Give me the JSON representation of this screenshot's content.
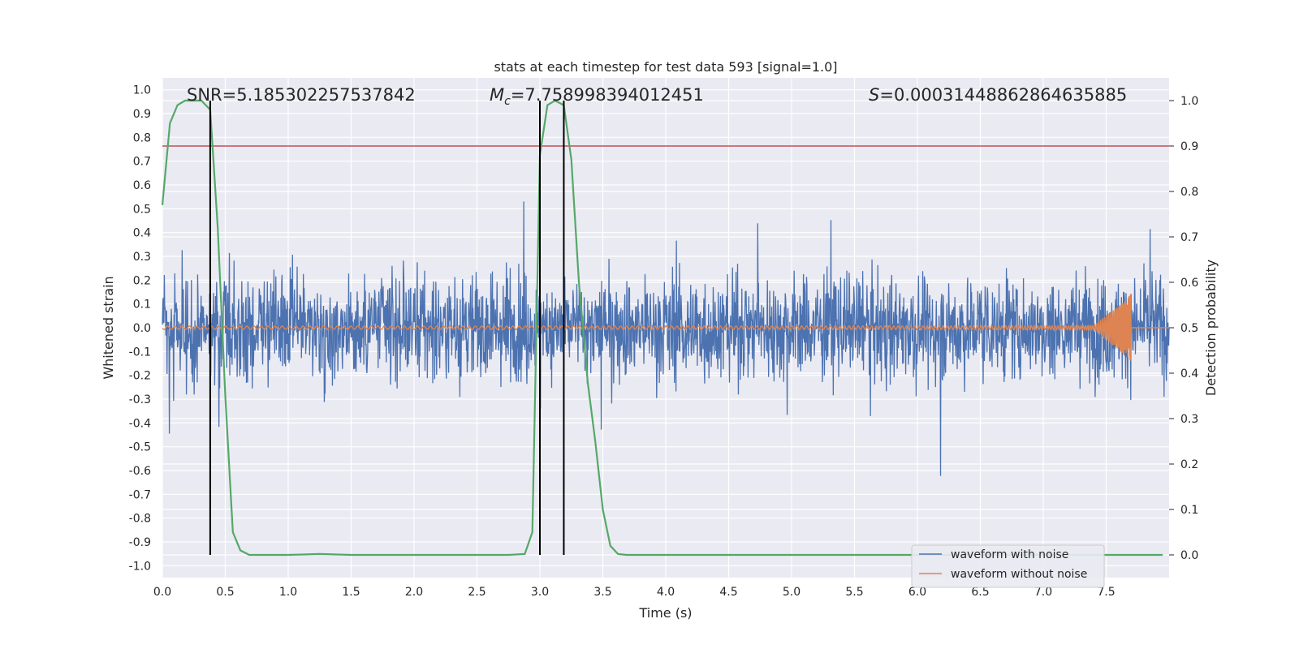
{
  "chart_data": {
    "type": "line",
    "title": "stats at each timestep for test data 593 [signal=1.0]",
    "xlabel": "Time (s)",
    "ylabel": "Whitened strain",
    "ylabel_right": "Detection probability",
    "xlim": [
      0.0,
      8.0
    ],
    "ylim": [
      -1.05,
      1.05
    ],
    "ylim_right": [
      -0.05,
      1.05
    ],
    "x_ticks": [
      "0.0",
      "0.5",
      "1.0",
      "1.5",
      "2.0",
      "2.5",
      "3.0",
      "3.5",
      "4.0",
      "4.5",
      "5.0",
      "5.5",
      "6.0",
      "6.5",
      "7.0",
      "7.5"
    ],
    "y_ticks": [
      "1.0",
      "0.9",
      "0.8",
      "0.7",
      "0.6",
      "0.5",
      "0.4",
      "0.3",
      "0.2",
      "0.1",
      "0.0",
      "-0.1",
      "-0.2",
      "-0.3",
      "-0.4",
      "-0.5",
      "-0.6",
      "-0.7",
      "-0.8",
      "-0.9",
      "-1.0"
    ],
    "y_ticks_right": [
      "1.0",
      "0.9",
      "0.8",
      "0.7",
      "0.6",
      "0.5",
      "0.4",
      "0.3",
      "0.2",
      "0.1",
      "0.0"
    ],
    "annotations": {
      "snr_label": "SNR=5.185302257537842",
      "mc_symbol": "M",
      "mc_sub": "c",
      "mc_value": "=7.758998394012451",
      "s_symbol": "S",
      "s_value": "=0.00031448862864635885"
    },
    "threshold_right": 0.9,
    "vertical_lines_s": [
      0.38,
      3.0,
      3.19
    ],
    "series": [
      {
        "name": "waveform with noise",
        "color": "#4c72b0",
        "noise_band": [
          -0.33,
          0.33
        ]
      },
      {
        "name": "waveform without noise",
        "color": "#dd8452",
        "chirp_end_s": 7.7,
        "peak_amplitude": 0.16
      },
      {
        "name": "detection probability",
        "color": "#55a868",
        "x": [
          0.0,
          0.06,
          0.12,
          0.18,
          0.25,
          0.31,
          0.38,
          0.44,
          0.5,
          0.56,
          0.62,
          0.69,
          0.75,
          1.0,
          1.25,
          1.5,
          2.0,
          2.5,
          2.75,
          2.88,
          2.94,
          3.0,
          3.06,
          3.12,
          3.19,
          3.25,
          3.31,
          3.38,
          3.44,
          3.5,
          3.56,
          3.62,
          3.69,
          3.75,
          4.0,
          5.0,
          6.0,
          7.0,
          7.5,
          7.95
        ],
        "y": [
          0.77,
          0.95,
          0.99,
          1.0,
          1.0,
          1.0,
          0.98,
          0.72,
          0.35,
          0.05,
          0.01,
          0.0,
          0.0,
          0.0,
          0.002,
          0.0,
          0.0,
          0.0,
          0.0,
          0.002,
          0.05,
          0.88,
          0.99,
          1.0,
          0.99,
          0.87,
          0.6,
          0.38,
          0.25,
          0.1,
          0.02,
          0.002,
          0.0,
          0.0,
          0.0,
          0.0,
          0.0,
          0.0,
          0.0,
          0.0
        ]
      }
    ],
    "legend": [
      "waveform with noise",
      "waveform without noise"
    ],
    "legend_position": "bottom-right"
  }
}
